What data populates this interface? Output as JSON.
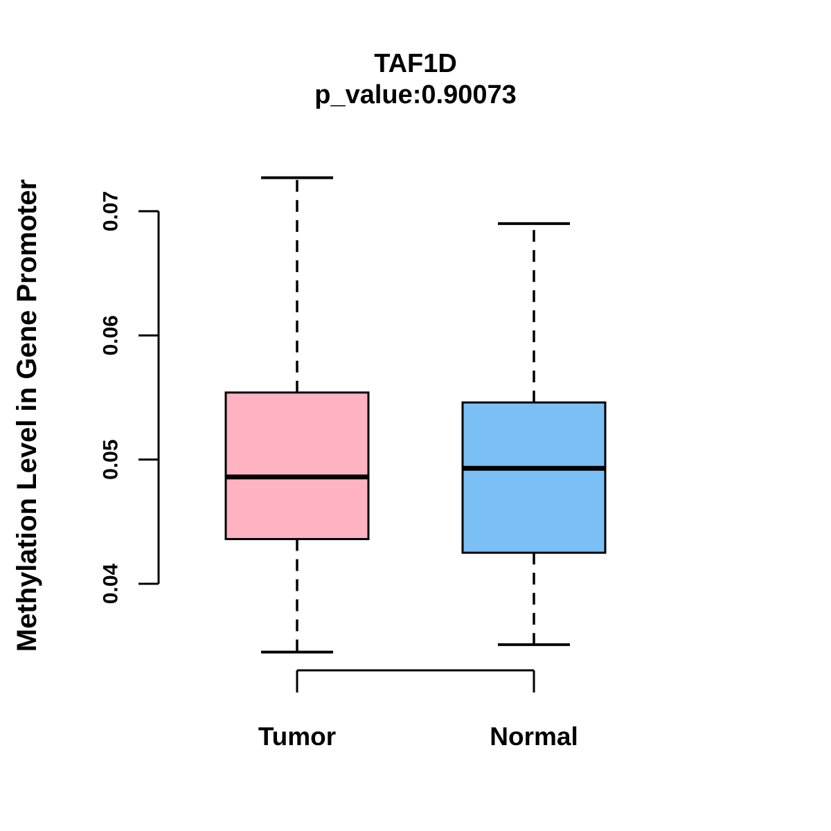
{
  "chart_data": {
    "type": "boxplot",
    "title": "TAF1D",
    "subtitle": "p_value:0.90073",
    "p_value": 0.90073,
    "ylabel": "Methylation Level in Gene Promoter",
    "ylim": [
      0.04,
      0.07
    ],
    "y_ticks": [
      0.04,
      0.05,
      0.06,
      0.07
    ],
    "y_tick_labels": [
      "0.04",
      "0.05",
      "0.06",
      "0.07"
    ],
    "grid": false,
    "legend_position": "none",
    "categories": [
      "Tumor",
      "Normal"
    ],
    "groups": [
      {
        "label": "Tumor",
        "fill_color": "#FFB3C1",
        "stats": {
          "whisker_low": 0.0345,
          "q1": 0.0436,
          "median": 0.0486,
          "q3": 0.0554,
          "whisker_high": 0.0727
        }
      },
      {
        "label": "Normal",
        "fill_color": "#7BC0F5",
        "stats": {
          "whisker_low": 0.0351,
          "q1": 0.0425,
          "median": 0.0493,
          "q3": 0.0546,
          "whisker_high": 0.069
        }
      }
    ],
    "colors": {
      "axis": "#000000",
      "text": "#000000",
      "box_border": "#000000",
      "median_line": "#000000",
      "background": "#FFFFFF"
    }
  }
}
